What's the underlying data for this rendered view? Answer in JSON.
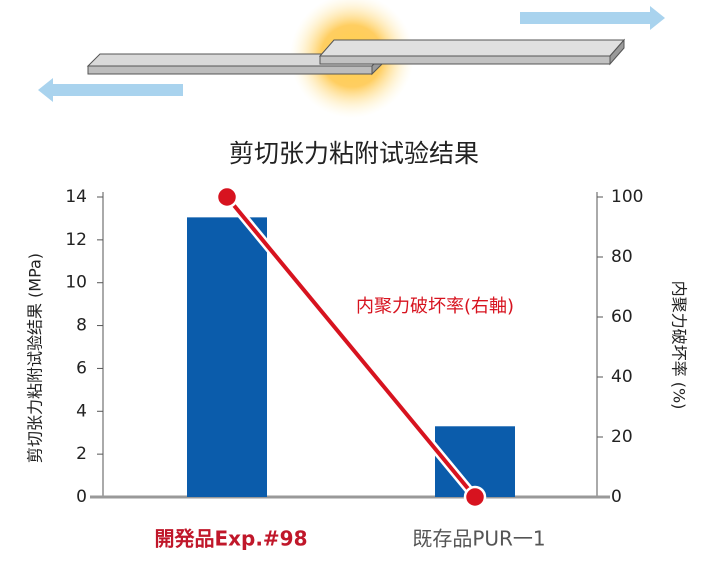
{
  "chart_data": {
    "type": "bar",
    "title": "剪切张力粘附试验结果",
    "y_label": "剪切张力粘附试验结果 (MPa)",
    "y2_label": "内聚力破坏率 (%)",
    "categories": [
      "開発品Exp.#98",
      "既存品PUR一1"
    ],
    "category_colors": [
      "#c0172a",
      "#555555"
    ],
    "series": [
      {
        "type": "bar",
        "color": "#0b5cab",
        "values": [
          13.05,
          3.3
        ]
      },
      {
        "type": "line",
        "axis": "y2",
        "name": "内聚力破坏率(右軸)",
        "color": "#d7131f",
        "values": [
          100,
          0
        ]
      }
    ],
    "ylim": [
      0,
      14
    ],
    "yticks": [
      0,
      2,
      4,
      6,
      8,
      10,
      12,
      14
    ],
    "y2lim": [
      0,
      100
    ],
    "y2ticks": [
      0,
      20,
      40,
      60,
      80,
      100
    ]
  }
}
